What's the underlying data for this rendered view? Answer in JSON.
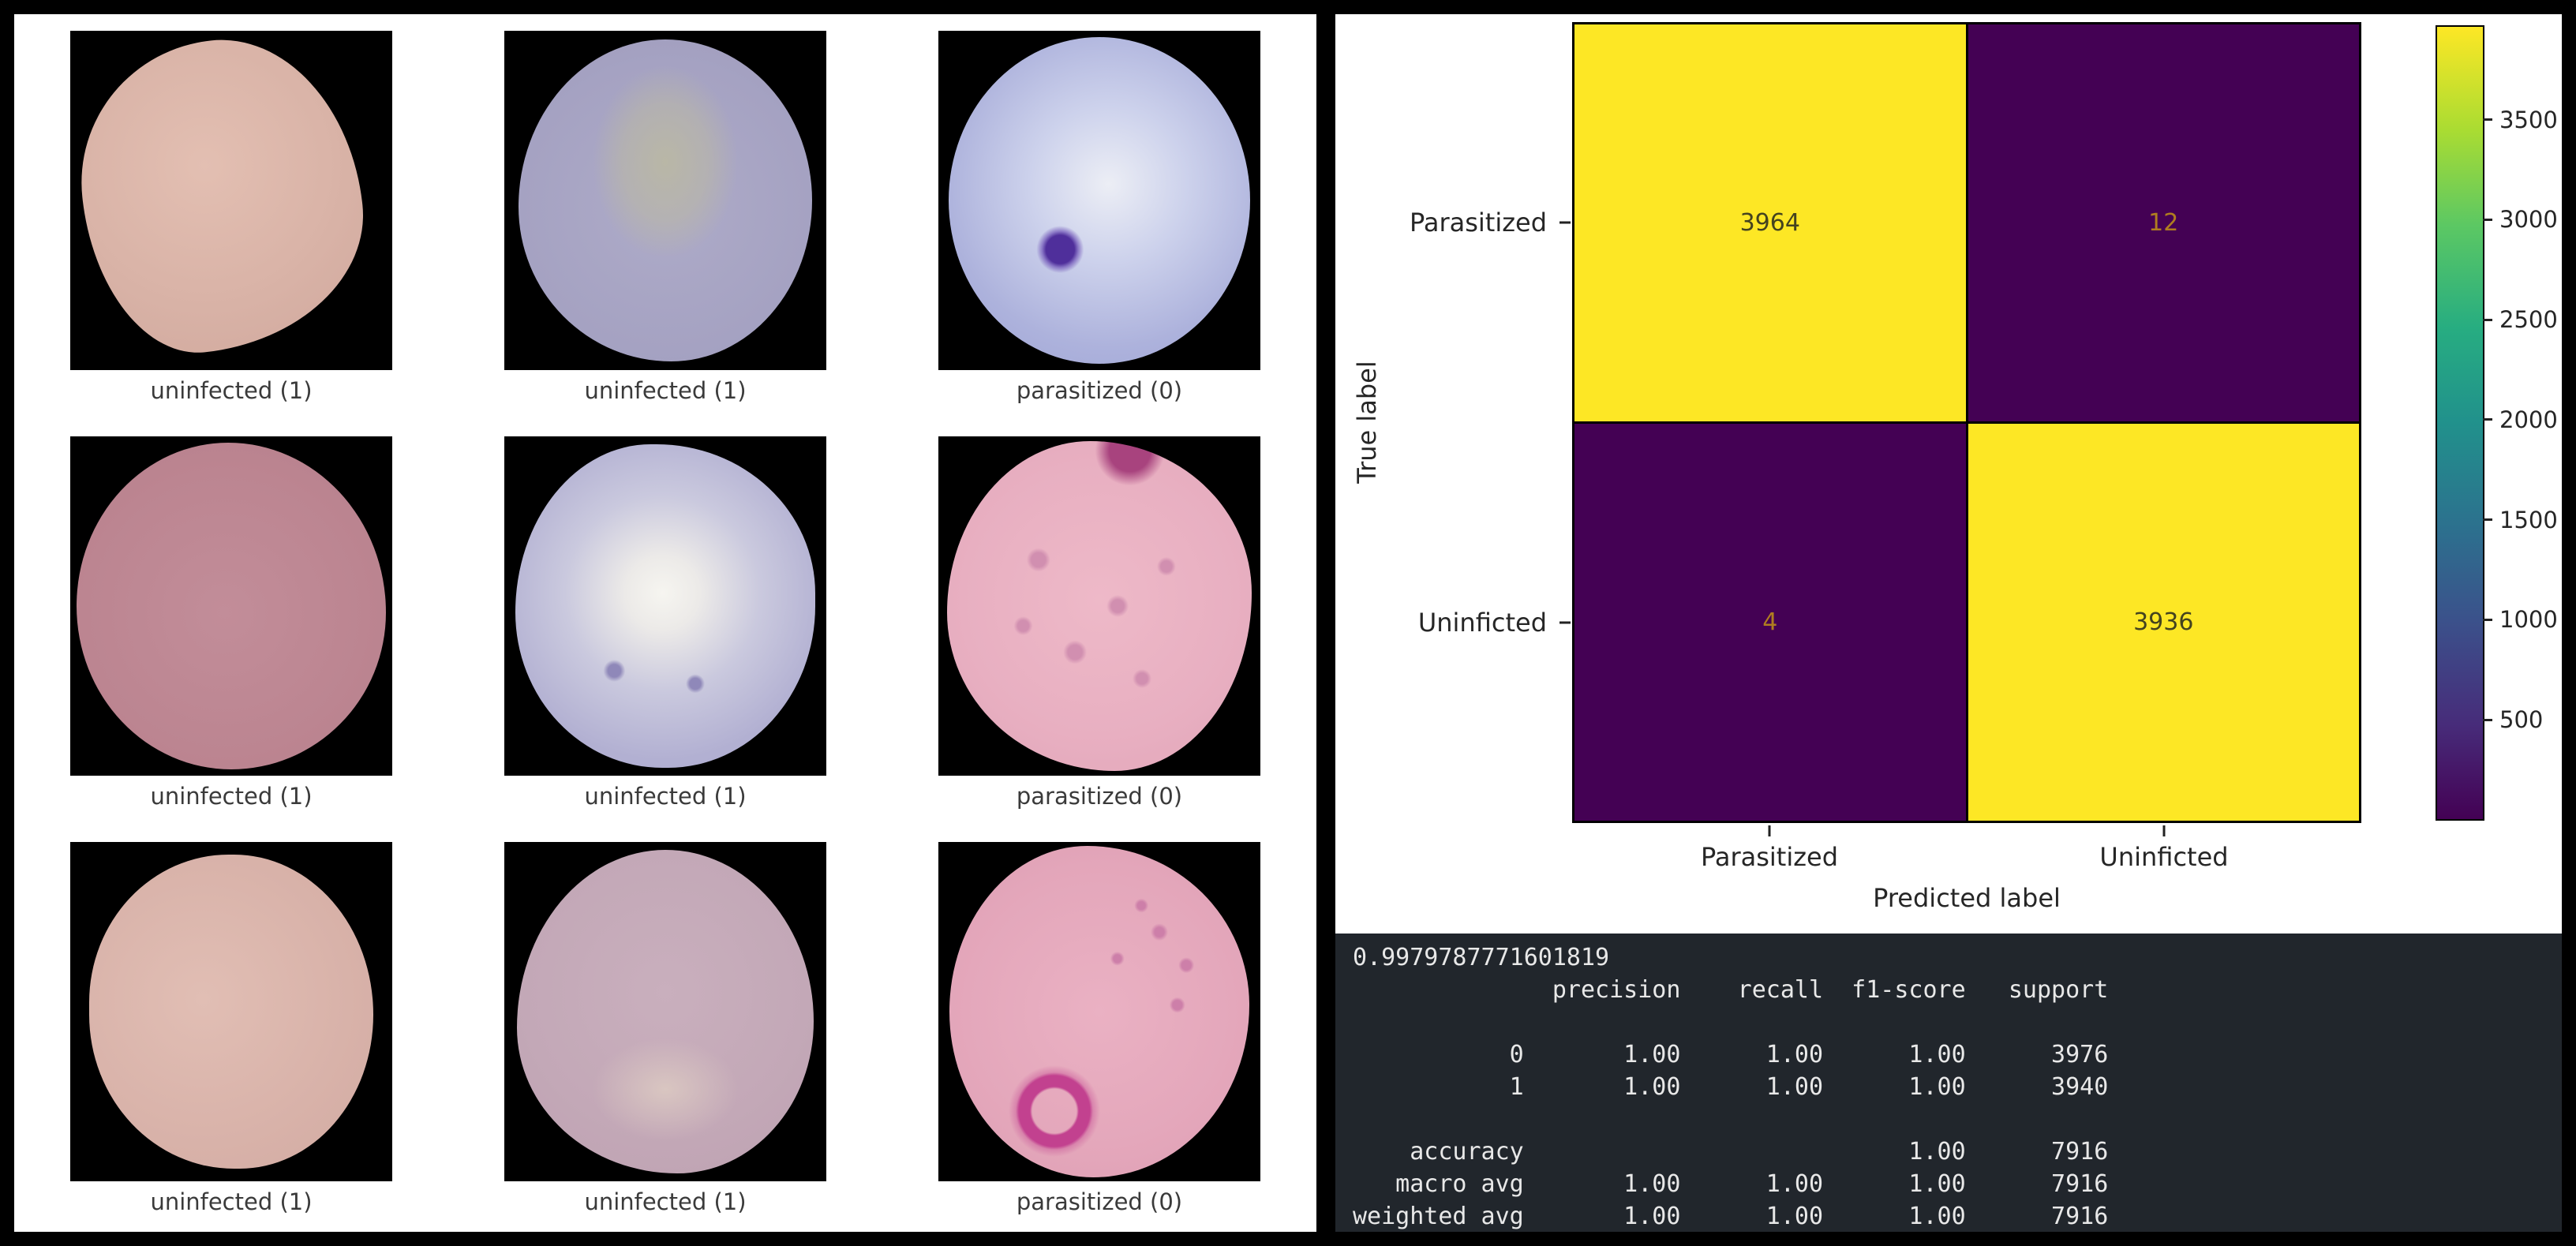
{
  "left_panel": {
    "cells": [
      {
        "caption": "uninfected (1)",
        "type": "uninfected"
      },
      {
        "caption": "uninfected (1)",
        "type": "uninfected"
      },
      {
        "caption": "parasitized (0)",
        "type": "parasitized"
      },
      {
        "caption": "uninfected (1)",
        "type": "uninfected"
      },
      {
        "caption": "uninfected (1)",
        "type": "uninfected"
      },
      {
        "caption": "parasitized (0)",
        "type": "parasitized"
      },
      {
        "caption": "uninfected (1)",
        "type": "uninfected"
      },
      {
        "caption": "uninfected (1)",
        "type": "uninfected"
      },
      {
        "caption": "parasitized (0)",
        "type": "parasitized"
      }
    ]
  },
  "chart_data": {
    "type": "heatmap",
    "title": "",
    "xlabel": "Predicted label",
    "ylabel": "True label",
    "x_ticklabels": [
      "Parasitized",
      "Uninficted"
    ],
    "y_ticklabels": [
      "Parasitized",
      "Uninficted"
    ],
    "matrix": [
      [
        3964,
        12
      ],
      [
        4,
        3936
      ]
    ],
    "vmin": 4,
    "vmax": 3964,
    "colormap": "viridis",
    "colorbar_ticks": [
      500,
      1000,
      1500,
      2000,
      2500,
      3000,
      3500
    ],
    "legend_position": "right-colorbar",
    "colors": {
      "cmap_max": "#fde725",
      "cmap_min": "#440154",
      "text_on_max": "#44431f",
      "text_on_min": "#b07d20"
    }
  },
  "console": {
    "accuracy_value": "0.9979787771601819",
    "lines": [
      "0.9979787771601819",
      "              precision    recall  f1-score   support",
      "",
      "           0       1.00      1.00      1.00      3976",
      "           1       1.00      1.00      1.00      3940",
      "",
      "    accuracy                           1.00      7916",
      "   macro avg       1.00      1.00      1.00      7916",
      "weighted avg       1.00      1.00      1.00      7916"
    ]
  }
}
